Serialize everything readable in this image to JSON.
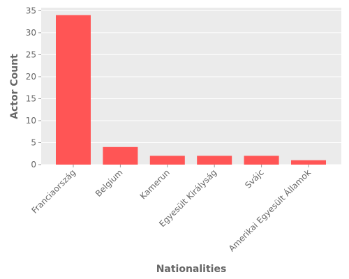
{
  "chart_data": {
    "type": "bar",
    "title": "",
    "xlabel": "Nationalities",
    "ylabel": "Actor Count",
    "categories": [
      "Franciaország",
      "Belgium",
      "Kamerun",
      "Egyesült Királyság",
      "Svájc",
      "Amerikai Egyesült Államok"
    ],
    "values": [
      34,
      4,
      2,
      2,
      2,
      1
    ],
    "ylim": [
      0,
      35.7
    ],
    "yticks": [
      "0",
      "5",
      "10",
      "15",
      "20",
      "25",
      "30",
      "35"
    ],
    "grid": true,
    "legend": "none",
    "colors": {
      "bar": "#FF5555",
      "panel": "#EBEBEB",
      "grid": "#FFFFFF",
      "text": "#666666"
    }
  }
}
